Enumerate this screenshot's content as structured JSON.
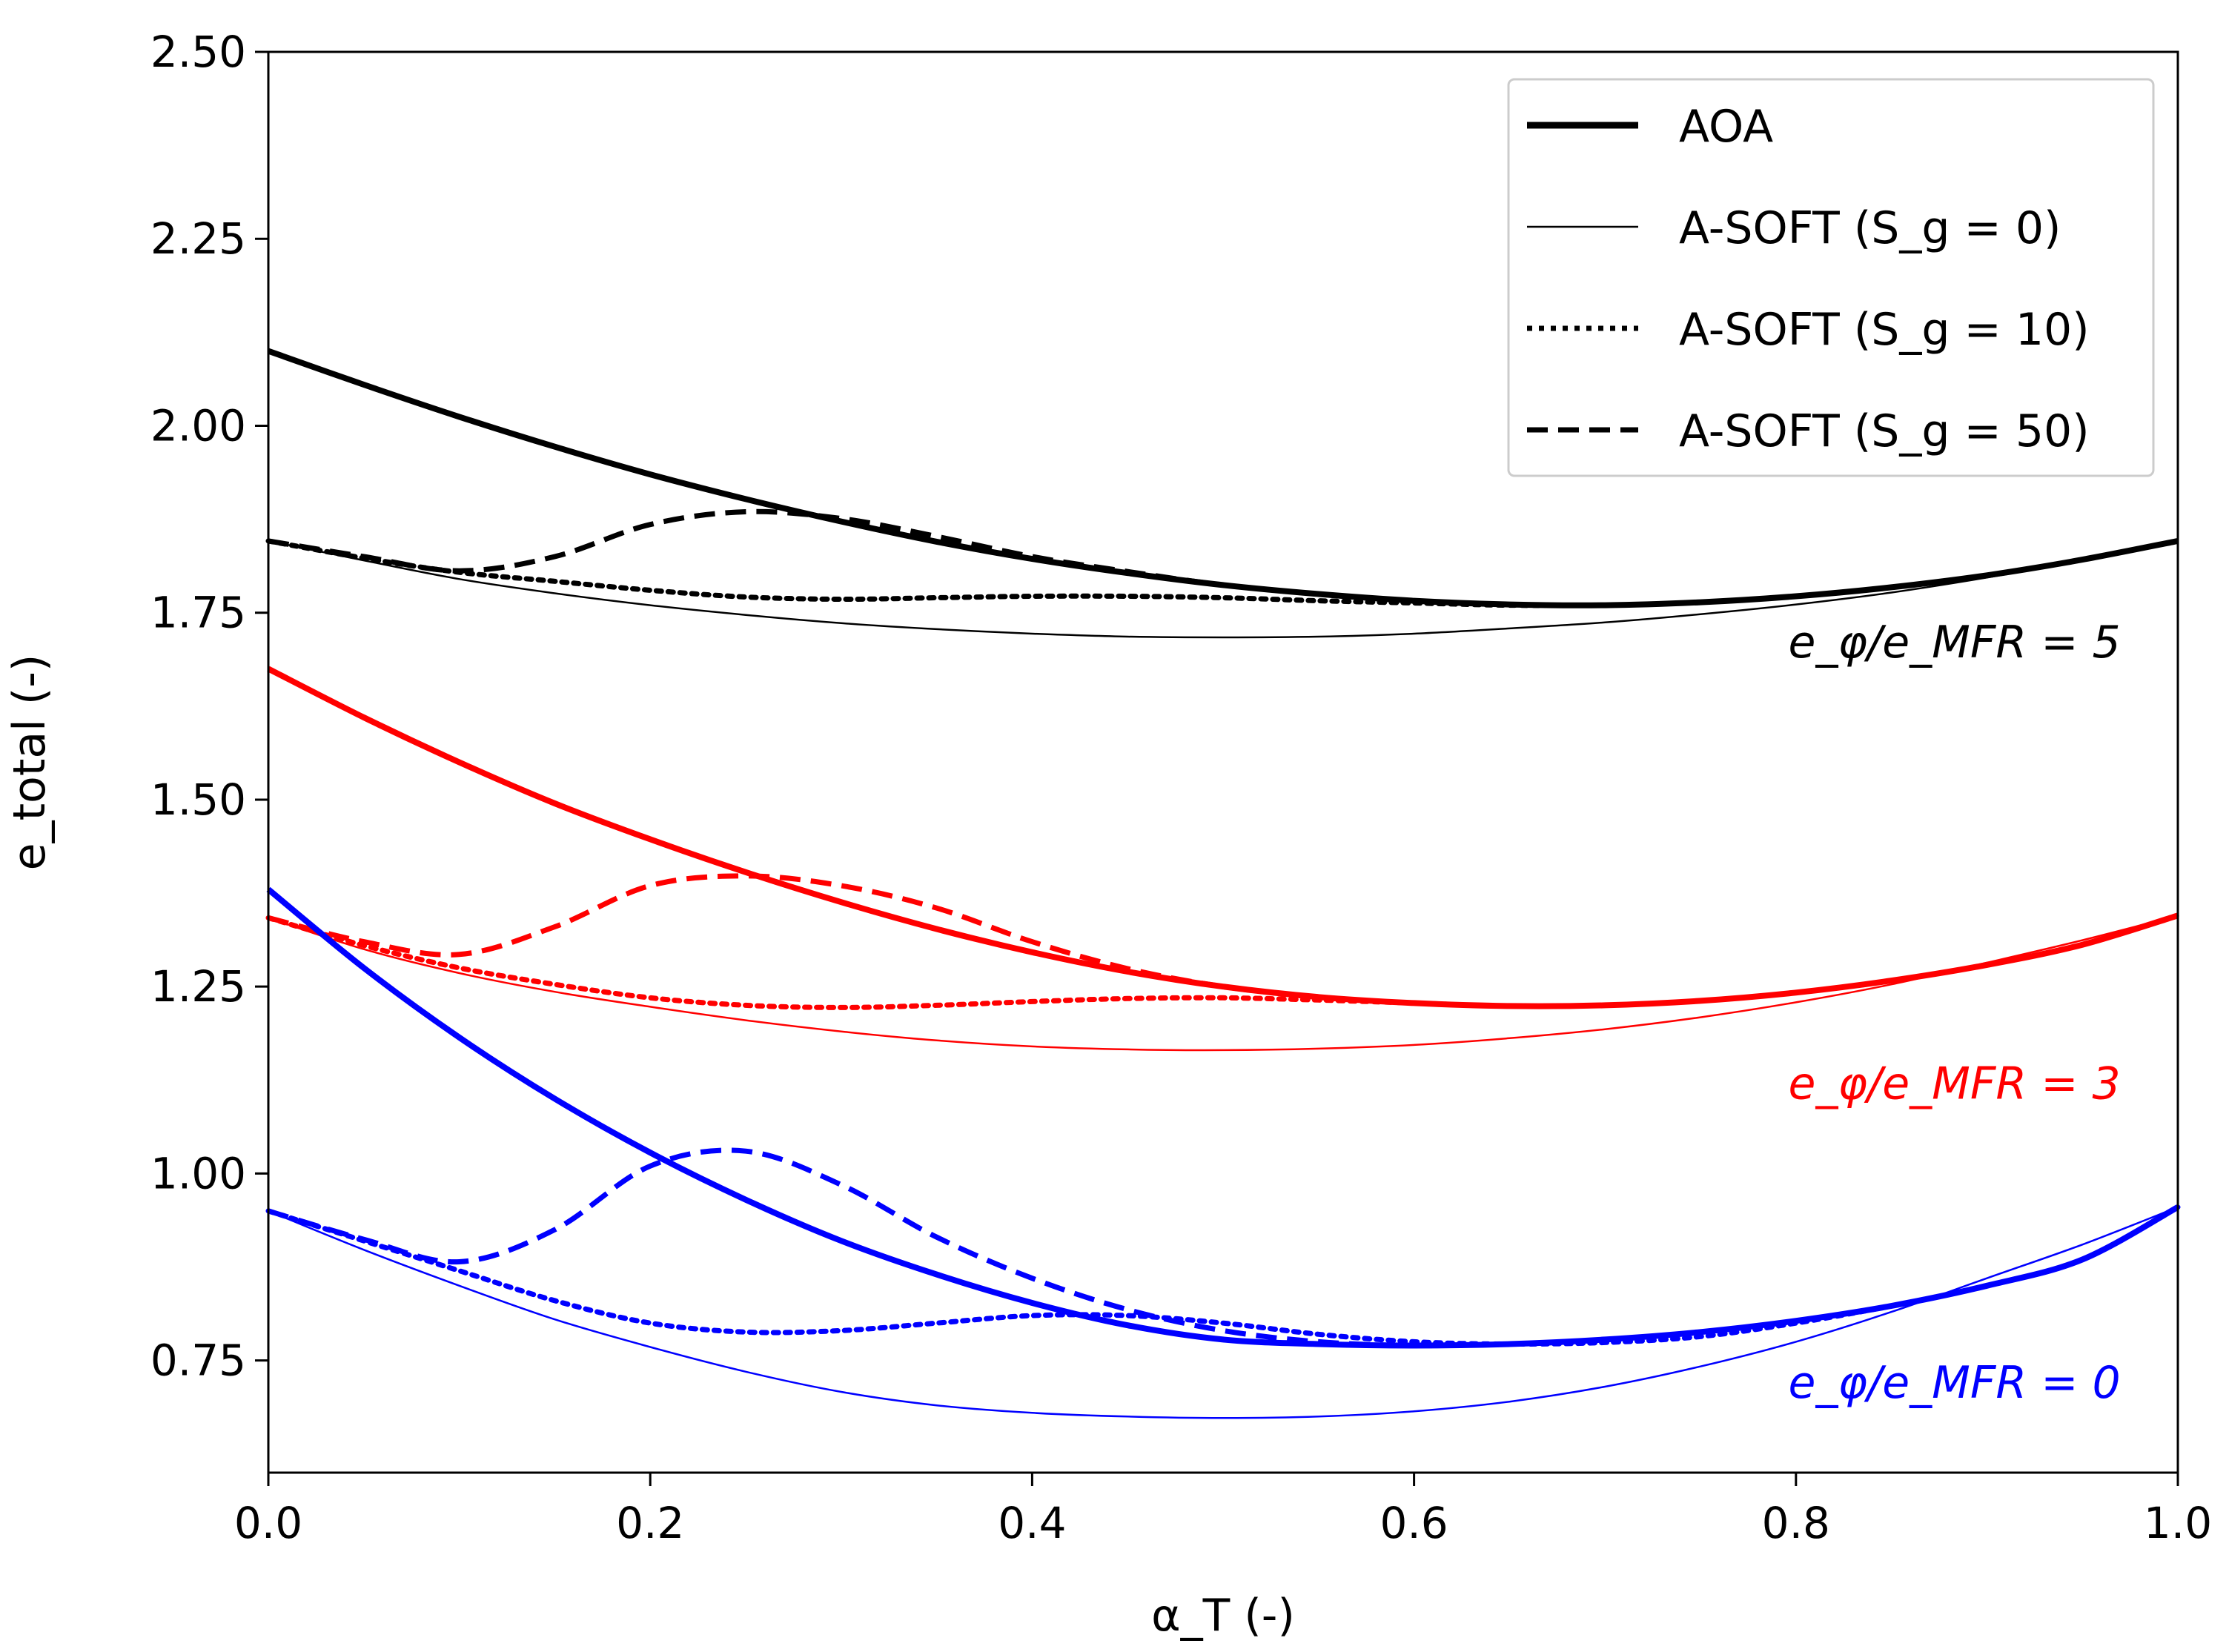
{
  "chart_data": {
    "type": "line",
    "title": "",
    "xlabel": "α_T (-)",
    "ylabel": "e_total (-)",
    "xlim": [
      0.0,
      1.0
    ],
    "ylim": [
      0.6,
      2.5
    ],
    "xticks": [
      0.0,
      0.2,
      0.4,
      0.6,
      0.8,
      1.0
    ],
    "xtick_labels": [
      "0.0",
      "0.2",
      "0.4",
      "0.6",
      "0.8",
      "1.0"
    ],
    "yticks": [
      0.75,
      1.0,
      1.25,
      1.5,
      1.75,
      2.0,
      2.25,
      2.5
    ],
    "ytick_labels": [
      "0.75",
      "1.00",
      "1.25",
      "1.50",
      "1.75",
      "2.00",
      "2.25",
      "2.50"
    ],
    "legend": {
      "position": "top-right",
      "entries": [
        {
          "label": "AOA",
          "style": "solid-thick"
        },
        {
          "label": "A-SOFT (S_g = 0)",
          "style": "solid-thin"
        },
        {
          "label": "A-SOFT (S_g = 10)",
          "style": "dotted"
        },
        {
          "label": "A-SOFT (S_g = 50)",
          "style": "dashed"
        }
      ]
    },
    "annotations": [
      {
        "text": "e_φ/e_MFR = 5",
        "color": "#000000",
        "x": 0.97,
        "y": 1.71
      },
      {
        "text": "e_φ/e_MFR = 3",
        "color": "#ff0000",
        "x": 0.97,
        "y": 1.12
      },
      {
        "text": "e_φ/e_MFR = 0",
        "color": "#0000ff",
        "x": 0.97,
        "y": 0.72
      }
    ],
    "x": [
      0.0,
      0.05,
      0.1,
      0.15,
      0.2,
      0.25,
      0.3,
      0.35,
      0.4,
      0.45,
      0.5,
      0.55,
      0.6,
      0.65,
      0.7,
      0.75,
      0.8,
      0.85,
      0.9,
      0.95,
      1.0
    ],
    "series": [
      {
        "name": "AOA",
        "group": "e_φ/e_MFR = 5",
        "style": "solid-thick",
        "color": "#000000",
        "values": [
          2.1,
          2.055,
          2.012,
          1.972,
          1.935,
          1.902,
          1.872,
          1.845,
          1.822,
          1.803,
          1.787,
          1.775,
          1.766,
          1.761,
          1.76,
          1.764,
          1.772,
          1.784,
          1.8,
          1.821,
          1.846
        ]
      },
      {
        "name": "A-SOFT (S_g = 0)",
        "group": "e_φ/e_MFR = 5",
        "style": "solid-thin",
        "color": "#000000",
        "values": [
          1.846,
          1.82,
          1.795,
          1.776,
          1.76,
          1.747,
          1.736,
          1.728,
          1.722,
          1.718,
          1.717,
          1.718,
          1.722,
          1.729,
          1.737,
          1.748,
          1.761,
          1.777,
          1.797,
          1.82,
          1.846
        ]
      },
      {
        "name": "A-SOFT (S_g = 10)",
        "group": "e_φ/e_MFR = 5",
        "style": "dotted",
        "color": "#000000",
        "values": [
          1.846,
          1.823,
          1.804,
          1.792,
          1.78,
          1.771,
          1.768,
          1.77,
          1.772,
          1.772,
          1.77,
          1.766,
          1.763,
          1.76,
          1.76,
          1.764,
          1.772,
          1.784,
          1.8,
          1.821,
          1.846
        ]
      },
      {
        "name": "A-SOFT (S_g = 50)",
        "group": "e_φ/e_MFR = 5",
        "style": "dashed",
        "color": "#000000",
        "values": [
          1.846,
          1.825,
          1.806,
          1.825,
          1.868,
          1.885,
          1.876,
          1.852,
          1.825,
          1.805,
          1.787,
          1.775,
          1.766,
          1.761,
          1.76,
          1.764,
          1.772,
          1.784,
          1.8,
          1.821,
          1.846
        ]
      },
      {
        "name": "AOA",
        "group": "e_φ/e_MFR = 3",
        "style": "solid-thick",
        "color": "#ff0000",
        "values": [
          1.675,
          1.61,
          1.55,
          1.495,
          1.447,
          1.403,
          1.363,
          1.327,
          1.296,
          1.27,
          1.25,
          1.236,
          1.228,
          1.224,
          1.225,
          1.231,
          1.242,
          1.258,
          1.279,
          1.306,
          1.345
        ]
      },
      {
        "name": "A-SOFT (S_g = 0)",
        "group": "e_φ/e_MFR = 3",
        "style": "solid-thin",
        "color": "#ff0000",
        "values": [
          1.342,
          1.3,
          1.268,
          1.243,
          1.223,
          1.205,
          1.19,
          1.178,
          1.17,
          1.166,
          1.165,
          1.167,
          1.172,
          1.181,
          1.193,
          1.209,
          1.229,
          1.253,
          1.282,
          1.312,
          1.345
        ]
      },
      {
        "name": "A-SOFT (S_g = 10)",
        "group": "e_φ/e_MFR = 3",
        "style": "dotted",
        "color": "#ff0000",
        "values": [
          1.342,
          1.305,
          1.275,
          1.253,
          1.235,
          1.225,
          1.222,
          1.225,
          1.23,
          1.234,
          1.235,
          1.232,
          1.228,
          1.224,
          1.225,
          1.231,
          1.242,
          1.258,
          1.279,
          1.306,
          1.345
        ]
      },
      {
        "name": "A-SOFT (S_g = 50)",
        "group": "e_φ/e_MFR = 3",
        "style": "dashed",
        "color": "#ff0000",
        "values": [
          1.342,
          1.31,
          1.293,
          1.33,
          1.385,
          1.398,
          1.385,
          1.355,
          1.31,
          1.274,
          1.25,
          1.236,
          1.228,
          1.224,
          1.225,
          1.231,
          1.242,
          1.258,
          1.279,
          1.306,
          1.345
        ]
      },
      {
        "name": "AOA",
        "group": "e_φ/e_MFR = 0",
        "style": "solid-thick",
        "color": "#0000ff",
        "values": [
          1.38,
          1.275,
          1.182,
          1.1,
          1.028,
          0.965,
          0.91,
          0.865,
          0.827,
          0.797,
          0.778,
          0.772,
          0.77,
          0.772,
          0.778,
          0.788,
          0.803,
          0.823,
          0.85,
          0.885,
          0.955
        ]
      },
      {
        "name": "A-SOFT (S_g = 0)",
        "group": "e_φ/e_MFR = 0",
        "style": "solid-thin",
        "color": "#0000ff",
        "values": [
          0.95,
          0.898,
          0.85,
          0.805,
          0.768,
          0.735,
          0.708,
          0.69,
          0.68,
          0.675,
          0.673,
          0.675,
          0.682,
          0.695,
          0.715,
          0.742,
          0.775,
          0.815,
          0.86,
          0.905,
          0.955
        ]
      },
      {
        "name": "A-SOFT (S_g = 10)",
        "group": "e_φ/e_MFR = 0",
        "style": "dotted",
        "color": "#0000ff",
        "values": [
          0.95,
          0.91,
          0.87,
          0.83,
          0.8,
          0.788,
          0.79,
          0.8,
          0.81,
          0.81,
          0.8,
          0.785,
          0.775,
          0.772,
          0.774,
          0.782,
          0.8,
          0.823,
          0.85,
          0.885,
          0.955
        ]
      },
      {
        "name": "A-SOFT (S_g = 50)",
        "group": "e_φ/e_MFR = 0",
        "style": "dashed",
        "color": "#0000ff",
        "values": [
          0.95,
          0.912,
          0.882,
          0.925,
          1.01,
          1.03,
          0.985,
          0.915,
          0.86,
          0.818,
          0.79,
          0.775,
          0.77,
          0.772,
          0.778,
          0.788,
          0.803,
          0.823,
          0.85,
          0.885,
          0.955
        ]
      }
    ]
  }
}
